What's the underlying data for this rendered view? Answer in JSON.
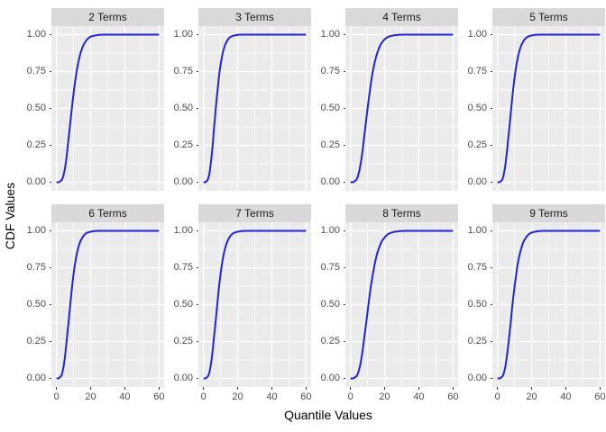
{
  "figure": {
    "kind": "faceted line chart (ggplot style, 2 rows x 4 columns)",
    "x_axis_title": "Quantile Values",
    "y_axis_title": "CDF Values"
  },
  "style": {
    "panel_bg": "#EBEBEB",
    "strip_bg": "#D9D9D9",
    "gridline": "#FFFFFF",
    "tick_mark": "#333333",
    "tick_label_color": "#4D4D4D",
    "strip_text_color": "#1A1A1A",
    "axis_title_color": "#000000",
    "line_color": "#2222D8"
  },
  "chart_data": {
    "type": "line",
    "xlabel": "Quantile Values",
    "ylabel": "CDF Values",
    "xlim": [
      0,
      60
    ],
    "ylim": [
      0,
      1
    ],
    "grid": "on",
    "legend": "none",
    "x_major_ticks": [
      0,
      20,
      40,
      60
    ],
    "x_minor_ticks": [
      10,
      30,
      50
    ],
    "x_tick_labels": [
      "0",
      "20",
      "40",
      "60"
    ],
    "y_major_ticks": [
      1,
      0.75,
      0.5,
      0.25,
      0
    ],
    "y_minor_ticks": [
      0.875,
      0.625,
      0.375,
      0.125
    ],
    "y_tick_labels": [
      "1.00",
      "0.75",
      "0.50",
      "0.25",
      "0.00"
    ],
    "cdf": [
      0,
      0.001,
      0.017,
      0.042,
      0.084,
      0.142,
      0.215,
      0.297,
      0.384,
      0.471,
      0.554,
      0.631,
      0.699,
      0.759,
      0.809,
      0.851,
      0.884,
      0.911,
      0.933,
      0.962,
      0.98,
      0.989,
      0.994,
      0.999,
      1,
      1
    ],
    "facets": [
      {
        "label": "2 Terms",
        "median": 9.0,
        "x": [
          0,
          1.6,
          3.2,
          4.0,
          4.8,
          5.6,
          6.3,
          7.1,
          7.9,
          8.7,
          9.5,
          10.3,
          11.1,
          11.9,
          12.7,
          13.5,
          14.3,
          15.1,
          15.9,
          17.5,
          19.0,
          20.6,
          22.2,
          25.4,
          28.6,
          60
        ]
      },
      {
        "label": "3 Terms",
        "median": 7.2,
        "x": [
          0,
          1.3,
          2.5,
          3.2,
          3.8,
          4.4,
          5.1,
          5.7,
          6.3,
          7.0,
          7.6,
          8.3,
          8.9,
          9.5,
          10.2,
          10.8,
          11.4,
          12.1,
          12.7,
          14.0,
          15.2,
          16.5,
          17.8,
          20.3,
          22.9,
          60
        ]
      },
      {
        "label": "4 Terms",
        "median": 10.0,
        "x": [
          0,
          1.8,
          3.5,
          4.4,
          5.3,
          6.2,
          7.1,
          7.9,
          8.8,
          9.7,
          10.6,
          11.5,
          12.3,
          13.2,
          14.1,
          15.0,
          15.9,
          16.8,
          17.6,
          19.4,
          21.2,
          22.9,
          24.7,
          28.2,
          31.7,
          60
        ]
      },
      {
        "label": "5 Terms",
        "median": 8.0,
        "x": [
          0,
          1.4,
          2.8,
          3.5,
          4.2,
          4.9,
          5.6,
          6.3,
          7.1,
          7.8,
          8.5,
          9.2,
          9.9,
          10.6,
          11.3,
          12.0,
          12.7,
          13.4,
          14.1,
          15.5,
          16.9,
          18.3,
          19.8,
          22.6,
          25.4,
          60
        ]
      },
      {
        "label": "6 Terms",
        "median": 8.0,
        "x": [
          0,
          1.4,
          2.8,
          3.5,
          4.2,
          4.9,
          5.6,
          6.3,
          7.1,
          7.8,
          8.5,
          9.2,
          9.9,
          10.6,
          11.3,
          12.0,
          12.7,
          13.4,
          14.1,
          15.5,
          16.9,
          18.3,
          19.8,
          22.6,
          25.4,
          60
        ]
      },
      {
        "label": "7 Terms",
        "median": 8.0,
        "x": [
          0,
          1.4,
          2.8,
          3.5,
          4.2,
          4.9,
          5.6,
          6.3,
          7.1,
          7.8,
          8.5,
          9.2,
          9.9,
          10.6,
          11.3,
          12.0,
          12.7,
          13.4,
          14.1,
          15.5,
          16.9,
          18.3,
          19.8,
          22.6,
          25.4,
          60
        ]
      },
      {
        "label": "8 Terms",
        "median": 10.5,
        "x": [
          0,
          1.9,
          3.7,
          4.6,
          5.6,
          6.5,
          7.4,
          8.3,
          9.3,
          10.2,
          11.1,
          12.0,
          13.0,
          13.9,
          14.8,
          15.7,
          16.7,
          17.6,
          18.5,
          20.4,
          22.2,
          24.1,
          25.9,
          29.6,
          33.3,
          60
        ]
      },
      {
        "label": "9 Terms",
        "median": 8.8,
        "x": [
          0,
          1.6,
          3.1,
          3.9,
          4.7,
          5.4,
          6.2,
          7.0,
          7.8,
          8.5,
          9.3,
          10.1,
          10.9,
          11.6,
          12.4,
          13.2,
          14.0,
          14.7,
          15.5,
          17.1,
          18.6,
          20.2,
          21.7,
          24.8,
          27.9,
          60
        ]
      }
    ]
  }
}
